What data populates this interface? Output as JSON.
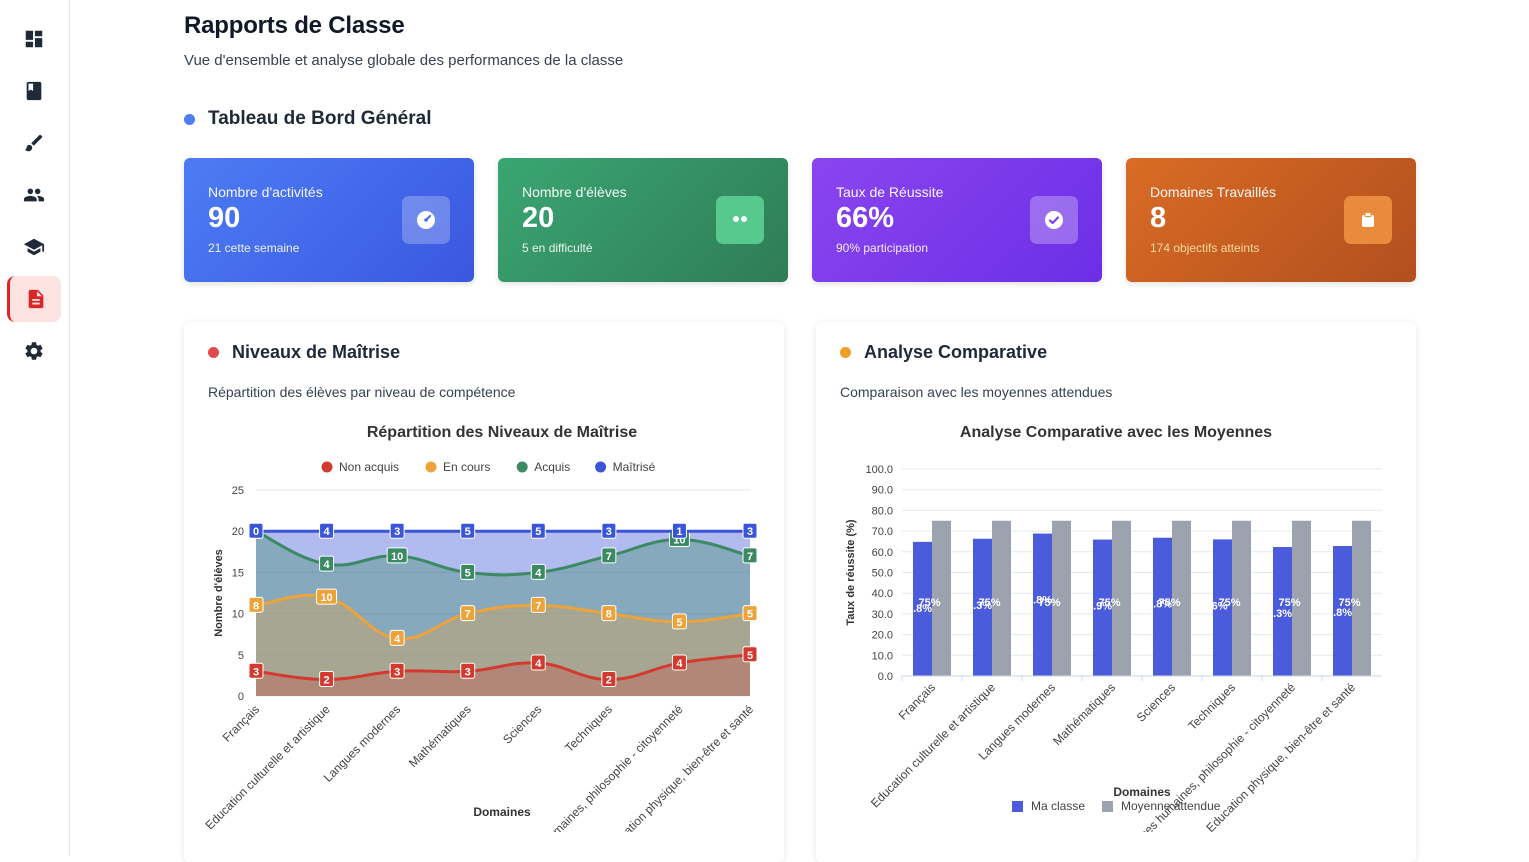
{
  "page": {
    "title": "Rapports de Classe",
    "subtitle": "Vue d'ensemble et analyse globale des performances de la classe"
  },
  "sidebar": {
    "items": [
      {
        "name": "dashboard-icon",
        "active": false
      },
      {
        "name": "book-icon",
        "active": false
      },
      {
        "name": "brush-icon",
        "active": false
      },
      {
        "name": "users-icon",
        "active": false
      },
      {
        "name": "graduation-cap-icon",
        "active": false
      },
      {
        "name": "report-document-icon",
        "active": true
      },
      {
        "name": "gear-icon",
        "active": false
      }
    ]
  },
  "dashboard": {
    "title": "Tableau de Bord Général",
    "dot_color": "#4f7cf5",
    "cards": [
      {
        "label": "Nombre d'activités",
        "value": "90",
        "sub": "21 cette semaine",
        "icon": "gauge-icon"
      },
      {
        "label": "Nombre d'élèves",
        "value": "20",
        "sub": "5 en difficulté",
        "icon": "eyes-icon"
      },
      {
        "label": "Taux de Réussite",
        "value": "66%",
        "sub": "90% participation",
        "icon": "check-circle-icon"
      },
      {
        "label": "Domaines Travaillés",
        "value": "8",
        "sub": "174 objectifs atteints",
        "icon": "clipboard-icon"
      }
    ]
  },
  "mastery": {
    "title": "Niveaux de Maîtrise",
    "description": "Répartition des élèves par niveau de compétence",
    "dot_color": "#e04b4b"
  },
  "comparative": {
    "title": "Analyse Comparative",
    "description": "Comparaison avec les moyennes attendues",
    "dot_color": "#eba025"
  },
  "chart_data": [
    {
      "type": "area",
      "title": "Répartition des Niveaux de Maîtrise",
      "xlabel": "Domaines",
      "ylabel": "Nombre d'élèves",
      "ylim": [
        0,
        25
      ],
      "yticks": [
        0,
        5,
        10,
        15,
        20,
        25
      ],
      "categories": [
        "Français",
        "Education culturelle et artistique",
        "Langues modernes",
        "Mathématiques",
        "Sciences",
        "Techniques",
        "Sciences humaines, philosophie - citoyenneté",
        "Education physique, bien-être et santé"
      ],
      "series": [
        {
          "name": "Non acquis",
          "color": "#d23a2f",
          "values": [
            3,
            2,
            3,
            3,
            4,
            2,
            4,
            5
          ]
        },
        {
          "name": "En cours",
          "color": "#eda33a",
          "values": [
            8,
            10,
            4,
            7,
            7,
            8,
            5,
            5
          ]
        },
        {
          "name": "Acquis",
          "color": "#3b8a63",
          "values": [
            9,
            4,
            10,
            5,
            4,
            7,
            10,
            7
          ]
        },
        {
          "name": "Maîtrisé",
          "color": "#3b55d9",
          "values": [
            0,
            4,
            3,
            5,
            5,
            3,
            1,
            3
          ]
        }
      ]
    },
    {
      "type": "bar",
      "title": "Analyse Comparative avec les Moyennes",
      "xlabel": "Domaines",
      "ylabel": "Taux de réussite (%)",
      "ylim": [
        0,
        100
      ],
      "yticks": [
        "0.0",
        "10.0",
        "20.0",
        "30.0",
        "40.0",
        "50.0",
        "60.0",
        "70.0",
        "80.0",
        "90.0",
        "100.0"
      ],
      "categories": [
        "Français",
        "Education culturelle et artistique",
        "Langues modernes",
        "Mathématiques",
        "Sciences",
        "Techniques",
        "Sciences humaines, philosophie - citoyenneté",
        "Education physique, bien-être et santé"
      ],
      "series": [
        {
          "name": "Ma classe",
          "color": "#4a5bdc",
          "values": [
            64.8,
            66.3,
            68.8,
            65.9,
            66.8,
            66,
            62.3,
            62.8
          ],
          "labels": [
            "64.8%",
            "66.3%",
            "68.8%",
            "65.9%",
            "66.8%",
            "66%",
            "62.3%",
            "62.8%"
          ]
        },
        {
          "name": "Moyenne attendue",
          "color": "#9ca3af",
          "values": [
            75,
            75,
            75,
            75,
            75,
            75,
            75,
            75
          ],
          "labels": [
            "75%",
            "75%",
            "75%",
            "75%",
            "75%",
            "75%",
            "75%",
            "75%"
          ]
        }
      ]
    }
  ]
}
